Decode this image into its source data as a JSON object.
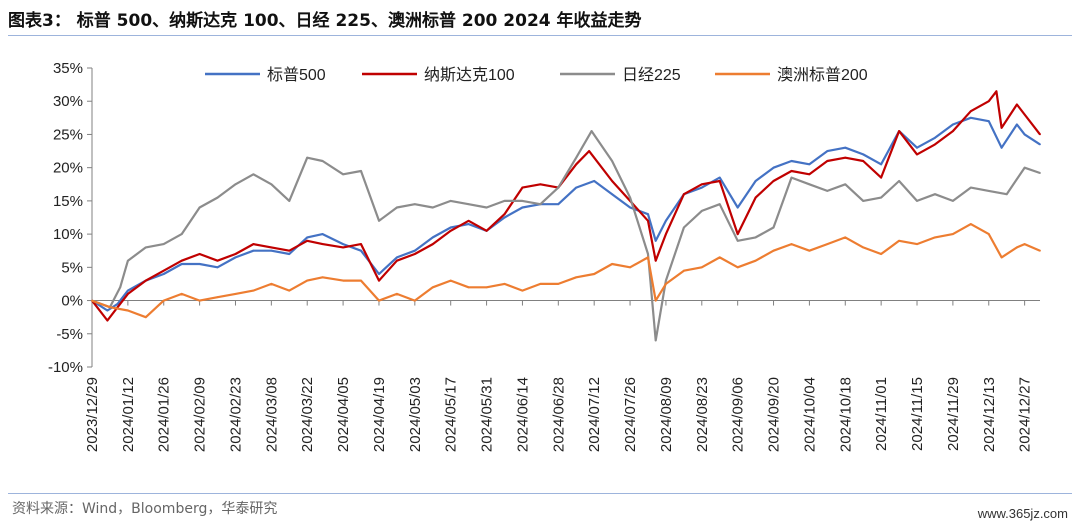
{
  "header": {
    "title": "图表3：  标普 500、纳斯达克 100、日经 225、澳洲标普 200 2024 年收益走势"
  },
  "footer": {
    "source": "资料来源：Wind，Bloomberg，华泰研究",
    "watermark": "www.365jz.com"
  },
  "chart_data": {
    "type": "line",
    "title": "",
    "xlabel": "",
    "ylabel": "",
    "y_unit": "%",
    "ylim": [
      -10,
      35
    ],
    "ytick_step": 5,
    "xlim": [
      "2023-12-29",
      "2025-01-02"
    ],
    "x_tick_labels": [
      "2023/12/29",
      "2024/01/12",
      "2024/01/26",
      "2024/02/09",
      "2024/02/23",
      "2024/03/08",
      "2024/03/22",
      "2024/04/05",
      "2024/04/19",
      "2024/05/03",
      "2024/05/17",
      "2024/05/31",
      "2024/06/14",
      "2024/06/28",
      "2024/07/12",
      "2024/07/26",
      "2024/08/09",
      "2024/08/23",
      "2024/09/06",
      "2024/09/20",
      "2024/10/04",
      "2024/10/18",
      "2024/11/01",
      "2024/11/15",
      "2024/11/29",
      "2024/12/13",
      "2024/12/27"
    ],
    "grid": false,
    "legend_position": "top",
    "series": [
      {
        "name": "标普500",
        "color": "#4472c4",
        "points": [
          [
            "2023-12-29",
            0
          ],
          [
            "2024-01-04",
            -1.5
          ],
          [
            "2024-01-08",
            -0.5
          ],
          [
            "2024-01-12",
            1.5
          ],
          [
            "2024-01-19",
            3
          ],
          [
            "2024-01-26",
            4
          ],
          [
            "2024-02-02",
            5.5
          ],
          [
            "2024-02-09",
            5.5
          ],
          [
            "2024-02-16",
            5
          ],
          [
            "2024-02-23",
            6.5
          ],
          [
            "2024-03-01",
            7.5
          ],
          [
            "2024-03-08",
            7.5
          ],
          [
            "2024-03-15",
            7
          ],
          [
            "2024-03-22",
            9.5
          ],
          [
            "2024-03-28",
            10
          ],
          [
            "2024-04-05",
            8.5
          ],
          [
            "2024-04-12",
            7.5
          ],
          [
            "2024-04-19",
            4
          ],
          [
            "2024-04-26",
            6.5
          ],
          [
            "2024-05-03",
            7.5
          ],
          [
            "2024-05-10",
            9.5
          ],
          [
            "2024-05-17",
            11
          ],
          [
            "2024-05-24",
            11.5
          ],
          [
            "2024-05-31",
            10.5
          ],
          [
            "2024-06-07",
            12.5
          ],
          [
            "2024-06-14",
            14
          ],
          [
            "2024-06-21",
            14.5
          ],
          [
            "2024-06-28",
            14.5
          ],
          [
            "2024-07-05",
            17
          ],
          [
            "2024-07-12",
            18
          ],
          [
            "2024-07-19",
            16
          ],
          [
            "2024-07-26",
            14
          ],
          [
            "2024-08-02",
            13
          ],
          [
            "2024-08-05",
            9
          ],
          [
            "2024-08-09",
            12
          ],
          [
            "2024-08-16",
            16
          ],
          [
            "2024-08-23",
            17
          ],
          [
            "2024-08-30",
            18.5
          ],
          [
            "2024-09-06",
            14
          ],
          [
            "2024-09-13",
            18
          ],
          [
            "2024-09-20",
            20
          ],
          [
            "2024-09-27",
            21
          ],
          [
            "2024-10-04",
            20.5
          ],
          [
            "2024-10-11",
            22.5
          ],
          [
            "2024-10-18",
            23
          ],
          [
            "2024-10-25",
            22
          ],
          [
            "2024-11-01",
            20.5
          ],
          [
            "2024-11-08",
            25.5
          ],
          [
            "2024-11-15",
            23
          ],
          [
            "2024-11-22",
            24.5
          ],
          [
            "2024-11-29",
            26.5
          ],
          [
            "2024-12-06",
            27.5
          ],
          [
            "2024-12-13",
            27
          ],
          [
            "2024-12-18",
            23
          ],
          [
            "2024-12-24",
            26.5
          ],
          [
            "2024-12-27",
            25
          ],
          [
            "2025-01-02",
            23.5
          ]
        ]
      },
      {
        "name": "纳斯达克100",
        "color": "#c00000",
        "points": [
          [
            "2023-12-29",
            0
          ],
          [
            "2024-01-04",
            -3
          ],
          [
            "2024-01-08",
            -1
          ],
          [
            "2024-01-12",
            1
          ],
          [
            "2024-01-19",
            3
          ],
          [
            "2024-01-26",
            4.5
          ],
          [
            "2024-02-02",
            6
          ],
          [
            "2024-02-09",
            7
          ],
          [
            "2024-02-16",
            6
          ],
          [
            "2024-02-23",
            7
          ],
          [
            "2024-03-01",
            8.5
          ],
          [
            "2024-03-08",
            8
          ],
          [
            "2024-03-15",
            7.5
          ],
          [
            "2024-03-22",
            9
          ],
          [
            "2024-03-28",
            8.5
          ],
          [
            "2024-04-05",
            8
          ],
          [
            "2024-04-12",
            8.5
          ],
          [
            "2024-04-19",
            3
          ],
          [
            "2024-04-26",
            6
          ],
          [
            "2024-05-03",
            7
          ],
          [
            "2024-05-10",
            8.5
          ],
          [
            "2024-05-17",
            10.5
          ],
          [
            "2024-05-24",
            12
          ],
          [
            "2024-05-31",
            10.5
          ],
          [
            "2024-06-07",
            13
          ],
          [
            "2024-06-14",
            17
          ],
          [
            "2024-06-21",
            17.5
          ],
          [
            "2024-06-28",
            17
          ],
          [
            "2024-07-05",
            20.5
          ],
          [
            "2024-07-10",
            22.5
          ],
          [
            "2024-07-19",
            18
          ],
          [
            "2024-07-26",
            15
          ],
          [
            "2024-08-02",
            12
          ],
          [
            "2024-08-05",
            6
          ],
          [
            "2024-08-09",
            10
          ],
          [
            "2024-08-16",
            16
          ],
          [
            "2024-08-23",
            17.5
          ],
          [
            "2024-08-30",
            18
          ],
          [
            "2024-09-06",
            10
          ],
          [
            "2024-09-13",
            15.5
          ],
          [
            "2024-09-20",
            18
          ],
          [
            "2024-09-27",
            19.5
          ],
          [
            "2024-10-04",
            19
          ],
          [
            "2024-10-11",
            21
          ],
          [
            "2024-10-18",
            21.5
          ],
          [
            "2024-10-25",
            21
          ],
          [
            "2024-11-01",
            18.5
          ],
          [
            "2024-11-08",
            25.5
          ],
          [
            "2024-11-15",
            22
          ],
          [
            "2024-11-22",
            23.5
          ],
          [
            "2024-11-29",
            25.5
          ],
          [
            "2024-12-06",
            28.5
          ],
          [
            "2024-12-13",
            30
          ],
          [
            "2024-12-16",
            31.5
          ],
          [
            "2024-12-18",
            26
          ],
          [
            "2024-12-24",
            29.5
          ],
          [
            "2024-12-27",
            28
          ],
          [
            "2025-01-02",
            25
          ]
        ]
      },
      {
        "name": "日经225",
        "color": "#8c8c8c",
        "points": [
          [
            "2023-12-29",
            0
          ],
          [
            "2024-01-05",
            -1
          ],
          [
            "2024-01-09",
            2
          ],
          [
            "2024-01-12",
            6
          ],
          [
            "2024-01-19",
            8
          ],
          [
            "2024-01-26",
            8.5
          ],
          [
            "2024-02-02",
            10
          ],
          [
            "2024-02-09",
            14
          ],
          [
            "2024-02-16",
            15.5
          ],
          [
            "2024-02-23",
            17.5
          ],
          [
            "2024-03-01",
            19
          ],
          [
            "2024-03-08",
            17.5
          ],
          [
            "2024-03-15",
            15
          ],
          [
            "2024-03-22",
            21.5
          ],
          [
            "2024-03-28",
            21
          ],
          [
            "2024-04-05",
            19
          ],
          [
            "2024-04-12",
            19.5
          ],
          [
            "2024-04-19",
            12
          ],
          [
            "2024-04-26",
            14
          ],
          [
            "2024-05-03",
            14.5
          ],
          [
            "2024-05-10",
            14
          ],
          [
            "2024-05-17",
            15
          ],
          [
            "2024-05-24",
            14.5
          ],
          [
            "2024-05-31",
            14
          ],
          [
            "2024-06-07",
            15
          ],
          [
            "2024-06-14",
            15
          ],
          [
            "2024-06-21",
            14.5
          ],
          [
            "2024-06-28",
            17
          ],
          [
            "2024-07-05",
            21.5
          ],
          [
            "2024-07-11",
            25.5
          ],
          [
            "2024-07-19",
            21
          ],
          [
            "2024-07-26",
            15.5
          ],
          [
            "2024-08-02",
            7
          ],
          [
            "2024-08-05",
            -6
          ],
          [
            "2024-08-09",
            3
          ],
          [
            "2024-08-16",
            11
          ],
          [
            "2024-08-23",
            13.5
          ],
          [
            "2024-08-30",
            14.5
          ],
          [
            "2024-09-06",
            9
          ],
          [
            "2024-09-13",
            9.5
          ],
          [
            "2024-09-20",
            11
          ],
          [
            "2024-09-27",
            18.5
          ],
          [
            "2024-10-04",
            17.5
          ],
          [
            "2024-10-11",
            16.5
          ],
          [
            "2024-10-18",
            17.5
          ],
          [
            "2024-10-25",
            15
          ],
          [
            "2024-11-01",
            15.5
          ],
          [
            "2024-11-08",
            18
          ],
          [
            "2024-11-15",
            15
          ],
          [
            "2024-11-22",
            16
          ],
          [
            "2024-11-29",
            15
          ],
          [
            "2024-12-06",
            17
          ],
          [
            "2024-12-13",
            16.5
          ],
          [
            "2024-12-20",
            16
          ],
          [
            "2024-12-27",
            20
          ],
          [
            "2025-01-02",
            19.2
          ]
        ]
      },
      {
        "name": "澳洲标普200",
        "color": "#ed7d31",
        "points": [
          [
            "2023-12-29",
            0
          ],
          [
            "2024-01-05",
            -1
          ],
          [
            "2024-01-12",
            -1.5
          ],
          [
            "2024-01-19",
            -2.5
          ],
          [
            "2024-01-26",
            0
          ],
          [
            "2024-02-02",
            1
          ],
          [
            "2024-02-09",
            0
          ],
          [
            "2024-02-16",
            0.5
          ],
          [
            "2024-02-23",
            1
          ],
          [
            "2024-03-01",
            1.5
          ],
          [
            "2024-03-08",
            2.5
          ],
          [
            "2024-03-15",
            1.5
          ],
          [
            "2024-03-22",
            3
          ],
          [
            "2024-03-28",
            3.5
          ],
          [
            "2024-04-05",
            3
          ],
          [
            "2024-04-12",
            3
          ],
          [
            "2024-04-19",
            0
          ],
          [
            "2024-04-26",
            1
          ],
          [
            "2024-05-03",
            0
          ],
          [
            "2024-05-10",
            2
          ],
          [
            "2024-05-17",
            3
          ],
          [
            "2024-05-24",
            2
          ],
          [
            "2024-05-31",
            2
          ],
          [
            "2024-06-07",
            2.5
          ],
          [
            "2024-06-14",
            1.5
          ],
          [
            "2024-06-21",
            2.5
          ],
          [
            "2024-06-28",
            2.5
          ],
          [
            "2024-07-05",
            3.5
          ],
          [
            "2024-07-12",
            4
          ],
          [
            "2024-07-19",
            5.5
          ],
          [
            "2024-07-26",
            5
          ],
          [
            "2024-08-02",
            6.5
          ],
          [
            "2024-08-05",
            0
          ],
          [
            "2024-08-09",
            2.5
          ],
          [
            "2024-08-16",
            4.5
          ],
          [
            "2024-08-23",
            5
          ],
          [
            "2024-08-30",
            6.5
          ],
          [
            "2024-09-06",
            5
          ],
          [
            "2024-09-13",
            6
          ],
          [
            "2024-09-20",
            7.5
          ],
          [
            "2024-09-27",
            8.5
          ],
          [
            "2024-10-04",
            7.5
          ],
          [
            "2024-10-11",
            8.5
          ],
          [
            "2024-10-18",
            9.5
          ],
          [
            "2024-10-25",
            8
          ],
          [
            "2024-11-01",
            7
          ],
          [
            "2024-11-08",
            9
          ],
          [
            "2024-11-15",
            8.5
          ],
          [
            "2024-11-22",
            9.5
          ],
          [
            "2024-11-29",
            10
          ],
          [
            "2024-12-06",
            11.5
          ],
          [
            "2024-12-13",
            10
          ],
          [
            "2024-12-18",
            6.5
          ],
          [
            "2024-12-24",
            8
          ],
          [
            "2024-12-27",
            8.5
          ],
          [
            "2025-01-02",
            7.5
          ]
        ]
      }
    ]
  }
}
